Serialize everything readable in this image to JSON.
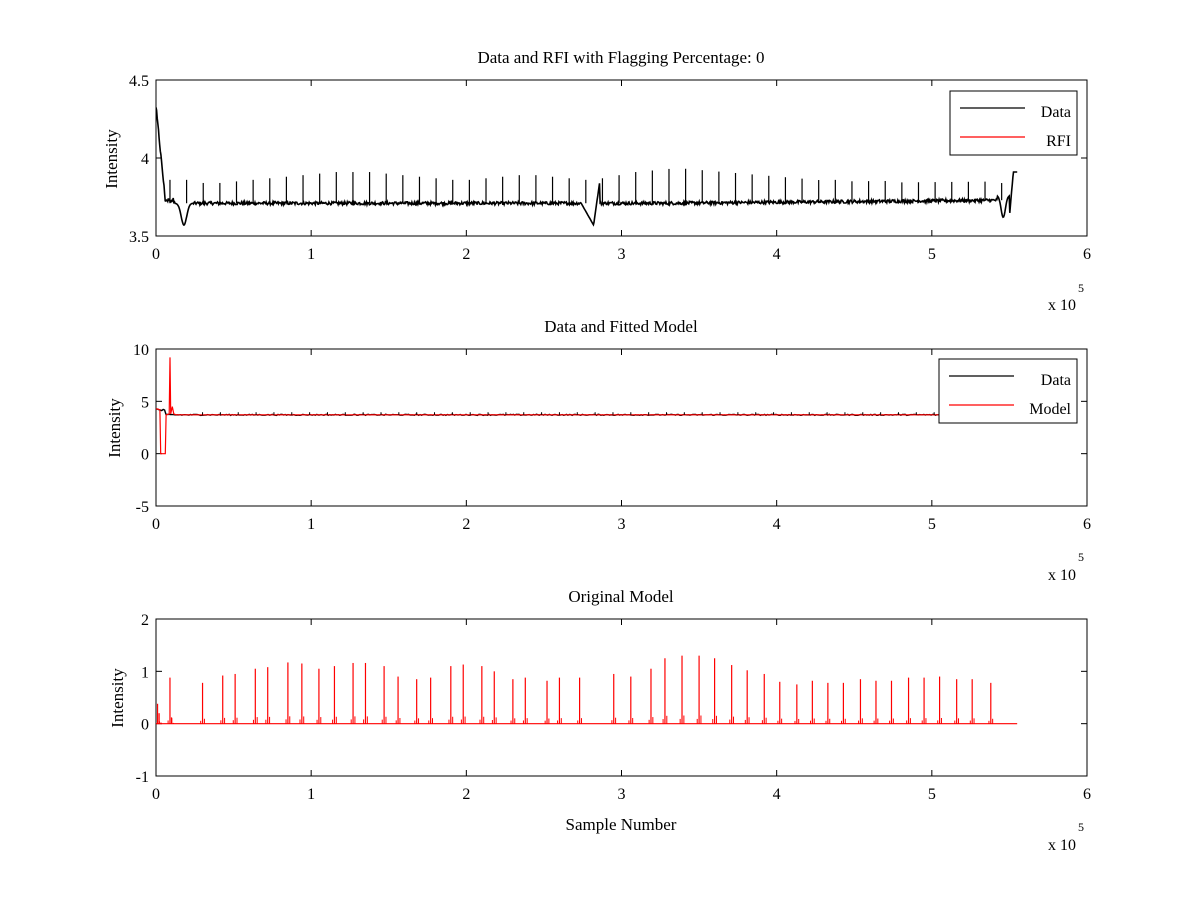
{
  "colors": {
    "data": "#000000",
    "model": "#ff0000",
    "axes": "#000000",
    "background": "#ffffff"
  },
  "chart_data": [
    {
      "type": "line",
      "title": "Data and RFI with Flagging Percentage: 0",
      "xlabel": "",
      "ylabel": "Intensity",
      "xlim": [
        0,
        6
      ],
      "ylim": [
        3.5,
        4.5
      ],
      "x_ticks": [
        "0",
        "1",
        "2",
        "3",
        "4",
        "5",
        "6"
      ],
      "y_ticks": [
        "3.5",
        "4",
        "4.5"
      ],
      "x_multiplier": {
        "base": "x 10",
        "exponent": "5"
      },
      "legend": {
        "position": "top-right",
        "entries": [
          {
            "label": "Data",
            "color": "#000000"
          },
          {
            "label": "RFI",
            "color": "#ff0000"
          }
        ]
      },
      "series": [
        {
          "name": "Data",
          "color": "#000000",
          "baseline": 3.71,
          "x_end": 5.55,
          "features": [
            {
              "x": 0.02,
              "y": 4.33,
              "kind": "peak"
            },
            {
              "x": 0.18,
              "y": 3.57,
              "kind": "dip"
            },
            {
              "x": 2.82,
              "y": 3.57,
              "kind": "dip"
            },
            {
              "x": 2.86,
              "y": 3.85,
              "kind": "spike"
            },
            {
              "x": 5.46,
              "y": 3.62,
              "kind": "dip"
            },
            {
              "x": 5.52,
              "y": 3.91,
              "kind": "spike"
            }
          ],
          "spike_heights_above_baseline": [
            0.15,
            0.15,
            0.13,
            0.13,
            0.14,
            0.15,
            0.16,
            0.17,
            0.18,
            0.19,
            0.2,
            0.2,
            0.2,
            0.19,
            0.18,
            0.17,
            0.16,
            0.15,
            0.15,
            0.16,
            0.17,
            0.18,
            0.18,
            0.17,
            0.16,
            0.15,
            0.16,
            0.18,
            0.2,
            0.21,
            0.22,
            0.22,
            0.21,
            0.2,
            0.19,
            0.18,
            0.17,
            0.16,
            0.15,
            0.14,
            0.14,
            0.13,
            0.13,
            0.13,
            0.12,
            0.12,
            0.12,
            0.12,
            0.12,
            0.12,
            0.11
          ]
        },
        {
          "name": "RFI",
          "color": "#ff0000",
          "points": []
        }
      ]
    },
    {
      "type": "line",
      "title": "Data and Fitted Model",
      "xlabel": "",
      "ylabel": "Intensity",
      "xlim": [
        0,
        6
      ],
      "ylim": [
        -5,
        10
      ],
      "x_ticks": [
        "0",
        "1",
        "2",
        "3",
        "4",
        "5",
        "6"
      ],
      "y_ticks": [
        "-5",
        "0",
        "5",
        "10"
      ],
      "x_multiplier": {
        "base": "x 10",
        "exponent": "5"
      },
      "legend": {
        "position": "top-right",
        "entries": [
          {
            "label": "Data",
            "color": "#000000"
          },
          {
            "label": "Model",
            "color": "#ff0000"
          }
        ]
      },
      "series": [
        {
          "name": "Data",
          "color": "#000000",
          "baseline": 3.71,
          "x_end": 5.55
        },
        {
          "name": "Model",
          "color": "#ff0000",
          "baseline": 3.71,
          "x_end": 5.55,
          "features": [
            {
              "x": 0.03,
              "y": 0.0,
              "kind": "drop"
            },
            {
              "x": 0.06,
              "y": 0.0,
              "kind": "drop"
            },
            {
              "x": 0.09,
              "y": 9.2,
              "kind": "spike"
            },
            {
              "x": 0.11,
              "y": 4.5,
              "kind": "spike"
            }
          ]
        }
      ]
    },
    {
      "type": "line",
      "title": "Original Model",
      "xlabel": "Sample Number",
      "ylabel": "Intensity",
      "xlim": [
        0,
        6
      ],
      "ylim": [
        -1,
        2
      ],
      "x_ticks": [
        "0",
        "1",
        "2",
        "3",
        "4",
        "5",
        "6"
      ],
      "y_ticks": [
        "-1",
        "0",
        "1",
        "2"
      ],
      "x_multiplier": {
        "base": "x 10",
        "exponent": "5"
      },
      "series": [
        {
          "name": "",
          "color": "#ff0000",
          "baseline": 0,
          "x_end": 5.55,
          "spikes": [
            {
              "x": 0.01,
              "y": 0.38
            },
            {
              "x": 0.02,
              "y": 0.2
            },
            {
              "x": 0.09,
              "y": 0.88
            },
            {
              "x": 0.1,
              "y": 0.12
            },
            {
              "x": 0.3,
              "y": 0.78
            },
            {
              "x": 0.43,
              "y": 0.92
            },
            {
              "x": 0.51,
              "y": 0.95
            },
            {
              "x": 0.64,
              "y": 1.05
            },
            {
              "x": 0.72,
              "y": 1.08
            },
            {
              "x": 0.85,
              "y": 1.17
            },
            {
              "x": 0.94,
              "y": 1.15
            },
            {
              "x": 1.05,
              "y": 1.05
            },
            {
              "x": 1.15,
              "y": 1.1
            },
            {
              "x": 1.27,
              "y": 1.16
            },
            {
              "x": 1.35,
              "y": 1.16
            },
            {
              "x": 1.47,
              "y": 1.1
            },
            {
              "x": 1.56,
              "y": 0.9
            },
            {
              "x": 1.68,
              "y": 0.85
            },
            {
              "x": 1.77,
              "y": 0.88
            },
            {
              "x": 1.9,
              "y": 1.1
            },
            {
              "x": 1.98,
              "y": 1.13
            },
            {
              "x": 2.1,
              "y": 1.1
            },
            {
              "x": 2.18,
              "y": 1.0
            },
            {
              "x": 2.3,
              "y": 0.85
            },
            {
              "x": 2.38,
              "y": 0.88
            },
            {
              "x": 2.52,
              "y": 0.82
            },
            {
              "x": 2.6,
              "y": 0.88
            },
            {
              "x": 2.73,
              "y": 0.88
            },
            {
              "x": 2.95,
              "y": 0.95
            },
            {
              "x": 3.06,
              "y": 0.9
            },
            {
              "x": 3.19,
              "y": 1.05
            },
            {
              "x": 3.28,
              "y": 1.25
            },
            {
              "x": 3.39,
              "y": 1.3
            },
            {
              "x": 3.5,
              "y": 1.3
            },
            {
              "x": 3.6,
              "y": 1.25
            },
            {
              "x": 3.71,
              "y": 1.12
            },
            {
              "x": 3.81,
              "y": 1.02
            },
            {
              "x": 3.92,
              "y": 0.95
            },
            {
              "x": 4.02,
              "y": 0.8
            },
            {
              "x": 4.13,
              "y": 0.75
            },
            {
              "x": 4.23,
              "y": 0.82
            },
            {
              "x": 4.33,
              "y": 0.78
            },
            {
              "x": 4.43,
              "y": 0.78
            },
            {
              "x": 4.54,
              "y": 0.85
            },
            {
              "x": 4.64,
              "y": 0.82
            },
            {
              "x": 4.74,
              "y": 0.82
            },
            {
              "x": 4.85,
              "y": 0.88
            },
            {
              "x": 4.95,
              "y": 0.88
            },
            {
              "x": 5.05,
              "y": 0.9
            },
            {
              "x": 5.16,
              "y": 0.85
            },
            {
              "x": 5.26,
              "y": 0.85
            },
            {
              "x": 5.38,
              "y": 0.78
            }
          ]
        }
      ]
    }
  ]
}
